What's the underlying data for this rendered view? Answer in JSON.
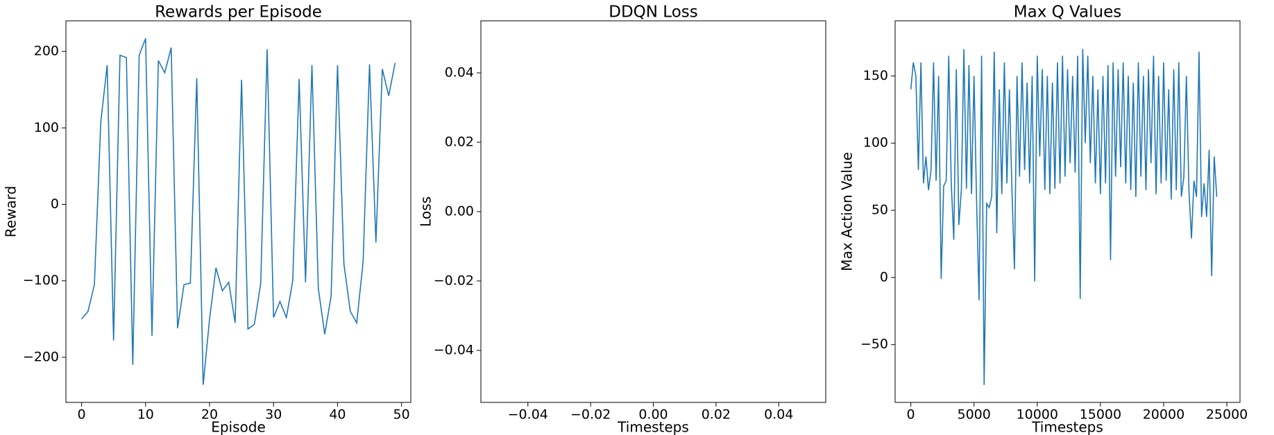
{
  "chart_data": [
    {
      "type": "line",
      "title": "Rewards per Episode",
      "xlabel": "Episode",
      "ylabel": "Reward",
      "color": "#1f77b4",
      "x": [
        0,
        1,
        2,
        3,
        4,
        5,
        6,
        7,
        8,
        9,
        10,
        11,
        12,
        13,
        14,
        15,
        16,
        17,
        18,
        19,
        20,
        21,
        22,
        23,
        24,
        25,
        26,
        27,
        28,
        29,
        30,
        31,
        32,
        33,
        34,
        35,
        36,
        37,
        38,
        39,
        40,
        41,
        42,
        43,
        44,
        45,
        46,
        47,
        48,
        49
      ],
      "values": [
        -150,
        -140,
        -105,
        108,
        182,
        -178,
        195,
        192,
        -210,
        195,
        217,
        -172,
        188,
        172,
        205,
        -162,
        -105,
        -103,
        165,
        -236,
        -150,
        -83,
        -113,
        -102,
        -155,
        163,
        -163,
        -157,
        -103,
        203,
        -148,
        -127,
        -148,
        -100,
        164,
        -102,
        182,
        -110,
        -170,
        -120,
        182,
        -78,
        -140,
        -155,
        -75,
        183,
        -50,
        177,
        142,
        185
      ],
      "xlim": [
        -2.45,
        51.45
      ],
      "ylim": [
        -259,
        240
      ],
      "xticks": [
        0,
        10,
        20,
        30,
        40,
        50
      ],
      "yticks": [
        {
          "value": -200,
          "label": "−200"
        },
        {
          "value": -100,
          "label": "−100"
        },
        0,
        100,
        200
      ]
    },
    {
      "type": "line",
      "title": "DDQN Loss",
      "xlabel": "Timesteps",
      "ylabel": "Loss",
      "color": "#1f77b4",
      "xlim": [
        -0.055,
        0.055
      ],
      "ylim": [
        -0.055,
        0.055
      ],
      "xticks": [
        {
          "value": -0.04,
          "label": "−0.04"
        },
        {
          "value": -0.02,
          "label": "−0.02"
        },
        {
          "value": 0,
          "label": "0.00"
        },
        {
          "value": 0.02,
          "label": "0.02"
        },
        {
          "value": 0.04,
          "label": "0.04"
        }
      ],
      "yticks": [
        {
          "value": -0.04,
          "label": "−0.04"
        },
        {
          "value": -0.02,
          "label": "−0.02"
        },
        {
          "value": 0,
          "label": "0.00"
        },
        {
          "value": 0.02,
          "label": "0.02"
        },
        {
          "value": 0.04,
          "label": "0.04"
        }
      ]
    },
    {
      "type": "line",
      "title": "Max Q Values",
      "xlabel": "Timesteps",
      "ylabel": "Max Action Value",
      "color": "#1f77b4",
      "x": [
        0,
        200,
        400,
        600,
        800,
        1000,
        1200,
        1400,
        1600,
        1800,
        2000,
        2200,
        2400,
        2600,
        2800,
        3000,
        3200,
        3400,
        3600,
        3800,
        4000,
        4200,
        4400,
        4600,
        4800,
        5000,
        5200,
        5400,
        5600,
        5800,
        6000,
        6200,
        6400,
        6600,
        6800,
        7000,
        7200,
        7400,
        7600,
        7800,
        8000,
        8200,
        8400,
        8600,
        8800,
        9000,
        9200,
        9400,
        9600,
        9800,
        10000,
        10200,
        10400,
        10600,
        10800,
        11000,
        11200,
        11400,
        11600,
        11800,
        12000,
        12200,
        12400,
        12600,
        12800,
        13000,
        13200,
        13400,
        13600,
        13800,
        14000,
        14200,
        14400,
        14600,
        14800,
        15000,
        15200,
        15400,
        15600,
        15800,
        16000,
        16200,
        16400,
        16600,
        16800,
        17000,
        17200,
        17400,
        17600,
        17800,
        18000,
        18200,
        18400,
        18600,
        18800,
        19000,
        19200,
        19400,
        19600,
        19800,
        20000,
        20200,
        20400,
        20600,
        20800,
        21000,
        21200,
        21400,
        21600,
        21800,
        22000,
        22200,
        22400,
        22600,
        22800,
        23000,
        23200,
        23400,
        23600,
        23800,
        24000,
        24200
      ],
      "values": [
        140,
        160,
        150,
        80,
        160,
        70,
        90,
        65,
        80,
        160,
        72,
        150,
        -1,
        68,
        72,
        165,
        70,
        28,
        155,
        39,
        65,
        170,
        66,
        158,
        62,
        150,
        58,
        -17,
        165,
        -80,
        55,
        52,
        60,
        168,
        33,
        140,
        62,
        160,
        70,
        140,
        65,
        6,
        150,
        75,
        160,
        80,
        145,
        70,
        150,
        -3,
        165,
        90,
        155,
        65,
        150,
        62,
        145,
        66,
        160,
        70,
        165,
        75,
        155,
        85,
        150,
        78,
        165,
        -16,
        170,
        100,
        165,
        85,
        150,
        70,
        140,
        62,
        150,
        70,
        158,
        13,
        160,
        75,
        155,
        82,
        160,
        70,
        150,
        65,
        145,
        60,
        160,
        75,
        150,
        65,
        155,
        85,
        165,
        62,
        150,
        70,
        160,
        72,
        140,
        58,
        155,
        65,
        160,
        60,
        75,
        150,
        65,
        29,
        72,
        60,
        168,
        45,
        70,
        45,
        95,
        1,
        90,
        60
      ],
      "xlim": [
        -1240,
        26040
      ],
      "ylim": [
        -93,
        191
      ],
      "xticks": [
        0,
        5000,
        10000,
        15000,
        20000,
        25000
      ],
      "yticks": [
        {
          "value": -50,
          "label": "−50"
        },
        0,
        50,
        100,
        150
      ]
    }
  ]
}
